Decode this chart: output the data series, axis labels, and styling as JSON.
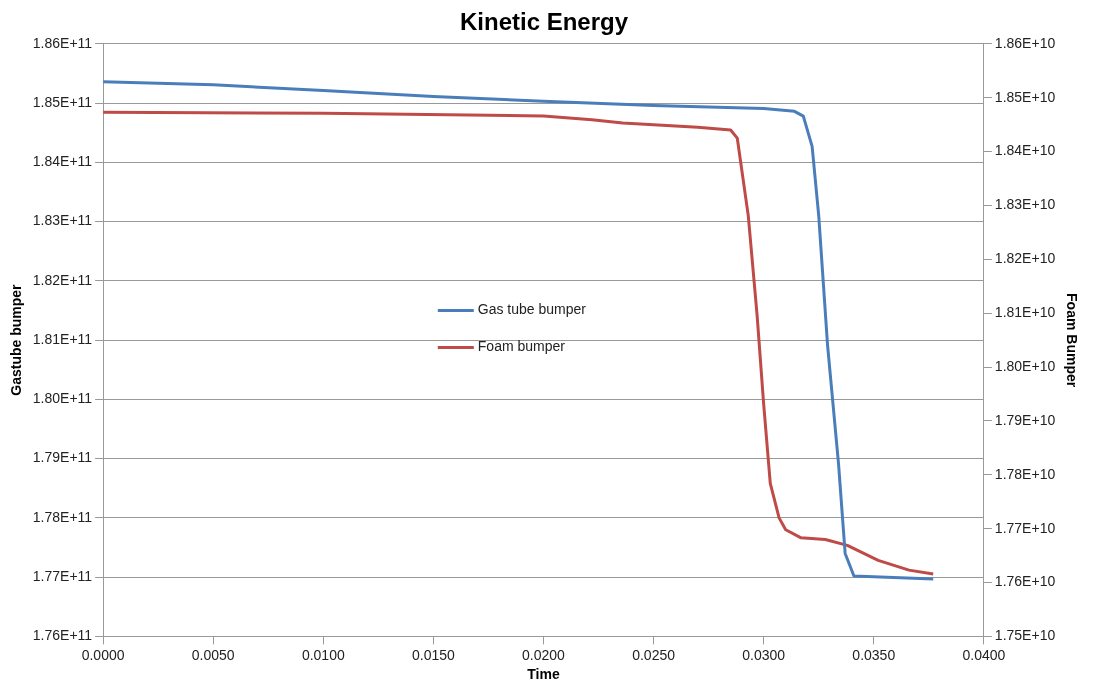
{
  "chart_data": {
    "type": "line",
    "title": "Kinetic Energy",
    "xlabel": "Time",
    "ylabel": "Gastube bumper",
    "y2label": "Foam Bumper",
    "xlim": [
      0,
      0.04
    ],
    "xticks": [
      {
        "value": 0,
        "label": "0.0000"
      },
      {
        "value": 0.005,
        "label": "0.0050"
      },
      {
        "value": 0.01,
        "label": "0.0100"
      },
      {
        "value": 0.015,
        "label": "0.0150"
      },
      {
        "value": 0.02,
        "label": "0.0200"
      },
      {
        "value": 0.025,
        "label": "0.0250"
      },
      {
        "value": 0.03,
        "label": "0.0300"
      },
      {
        "value": 0.035,
        "label": "0.0350"
      },
      {
        "value": 0.04,
        "label": "0.0400"
      }
    ],
    "ylim": [
      176000000000.0,
      186000000000.0
    ],
    "yticks": [
      {
        "value": 176000000000.0,
        "label": "1.76E+11"
      },
      {
        "value": 177000000000.0,
        "label": "1.77E+11"
      },
      {
        "value": 178000000000.0,
        "label": "1.78E+11"
      },
      {
        "value": 179000000000.0,
        "label": "1.79E+11"
      },
      {
        "value": 180000000000.0,
        "label": "1.80E+11"
      },
      {
        "value": 181000000000.0,
        "label": "1.81E+11"
      },
      {
        "value": 182000000000.0,
        "label": "1.82E+11"
      },
      {
        "value": 183000000000.0,
        "label": "1.83E+11"
      },
      {
        "value": 184000000000.0,
        "label": "1.84E+11"
      },
      {
        "value": 185000000000.0,
        "label": "1.85E+11"
      },
      {
        "value": 186000000000.0,
        "label": "1.86E+11"
      }
    ],
    "y2lim": [
      17500000000.0,
      18600000000.0
    ],
    "y2ticks": [
      {
        "value": 17500000000.0,
        "label": "1.75E+10"
      },
      {
        "value": 17600000000.0,
        "label": "1.76E+10"
      },
      {
        "value": 17700000000.0,
        "label": "1.77E+10"
      },
      {
        "value": 17800000000.0,
        "label": "1.78E+10"
      },
      {
        "value": 17900000000.0,
        "label": "1.79E+10"
      },
      {
        "value": 18000000000.0,
        "label": "1.80E+10"
      },
      {
        "value": 18100000000.0,
        "label": "1.81E+10"
      },
      {
        "value": 18200000000.0,
        "label": "1.82E+10"
      },
      {
        "value": 18300000000.0,
        "label": "1.83E+10"
      },
      {
        "value": 18400000000.0,
        "label": "1.84E+10"
      },
      {
        "value": 18500000000.0,
        "label": "1.85E+10"
      },
      {
        "value": 18600000000.0,
        "label": "1.86E+10"
      }
    ],
    "grid": "y",
    "legend": "center",
    "marker": "none",
    "line_style": "solid",
    "series": [
      {
        "name": "Gas tube bumper",
        "color": "#4a7ebb",
        "x": [
          0,
          0.005,
          0.01,
          0.015,
          0.02,
          0.025,
          0.03,
          0.0314,
          0.0318,
          0.0322,
          0.0325,
          0.0329,
          0.0334,
          0.0337,
          0.0341,
          0.0377
        ],
        "values": [
          185360000000.0,
          185310000000.0,
          185210000000.0,
          185110000000.0,
          185030000000.0,
          184960000000.0,
          184910000000.0,
          184860000000.0,
          184780000000.0,
          184270000000.0,
          183100000000.0,
          180920000000.0,
          178910000000.0,
          177400000000.0,
          177020000000.0,
          176970000000.0
        ]
      },
      {
        "name": "Foam bumper",
        "color": "#be4b48",
        "axis": "y2",
        "x": [
          0,
          0.01,
          0.02,
          0.0222,
          0.0236,
          0.027,
          0.0285,
          0.0288,
          0.0293,
          0.0297,
          0.03,
          0.0303,
          0.0307,
          0.031,
          0.0317,
          0.0328,
          0.0338,
          0.0352,
          0.0366,
          0.0377
        ],
        "values": [
          18473000000.0,
          18471000000.0,
          18466000000.0,
          18459000000.0,
          18453000000.0,
          18445000000.0,
          18440000000.0,
          18425000000.0,
          18281000000.0,
          18097000000.0,
          17931000000.0,
          17784000000.0,
          17720000000.0,
          17698000000.0,
          17683000000.0,
          17680000000.0,
          17669000000.0,
          17641000000.0,
          17623000000.0,
          17616000000.0
        ]
      }
    ]
  }
}
